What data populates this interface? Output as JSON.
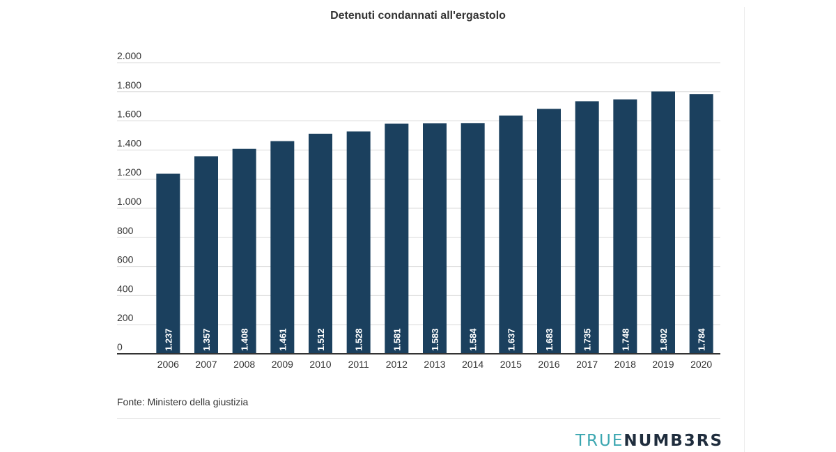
{
  "chart_data": {
    "type": "bar",
    "title": "Detenuti condannati all'ergastolo",
    "categories": [
      "2006",
      "2007",
      "2008",
      "2009",
      "2010",
      "2011",
      "2012",
      "2013",
      "2014",
      "2015",
      "2016",
      "2017",
      "2018",
      "2019",
      "2020"
    ],
    "values": [
      1237,
      1357,
      1408,
      1461,
      1512,
      1528,
      1581,
      1583,
      1584,
      1637,
      1683,
      1735,
      1748,
      1802,
      1784
    ],
    "value_labels": [
      "1.237",
      "1.357",
      "1.408",
      "1.461",
      "1.512",
      "1.528",
      "1.581",
      "1.583",
      "1.584",
      "1.637",
      "1.683",
      "1.735",
      "1.748",
      "1.802",
      "1.784"
    ],
    "ylim": [
      0,
      2000
    ],
    "yticks": [
      0,
      200,
      400,
      600,
      800,
      1000,
      1200,
      1400,
      1600,
      1800,
      2000
    ],
    "ytick_labels": [
      "0",
      "200",
      "400",
      "600",
      "800",
      "1.000",
      "1.200",
      "1.400",
      "1.600",
      "1.800",
      "2.000"
    ],
    "xlabel": "",
    "ylabel": "",
    "grid": true,
    "bar_color": "#1b405e",
    "source": "Fonte: Ministero della giustizia"
  },
  "branding": {
    "logo_part1": "TRUE",
    "logo_part2": "NUMB3RS"
  }
}
